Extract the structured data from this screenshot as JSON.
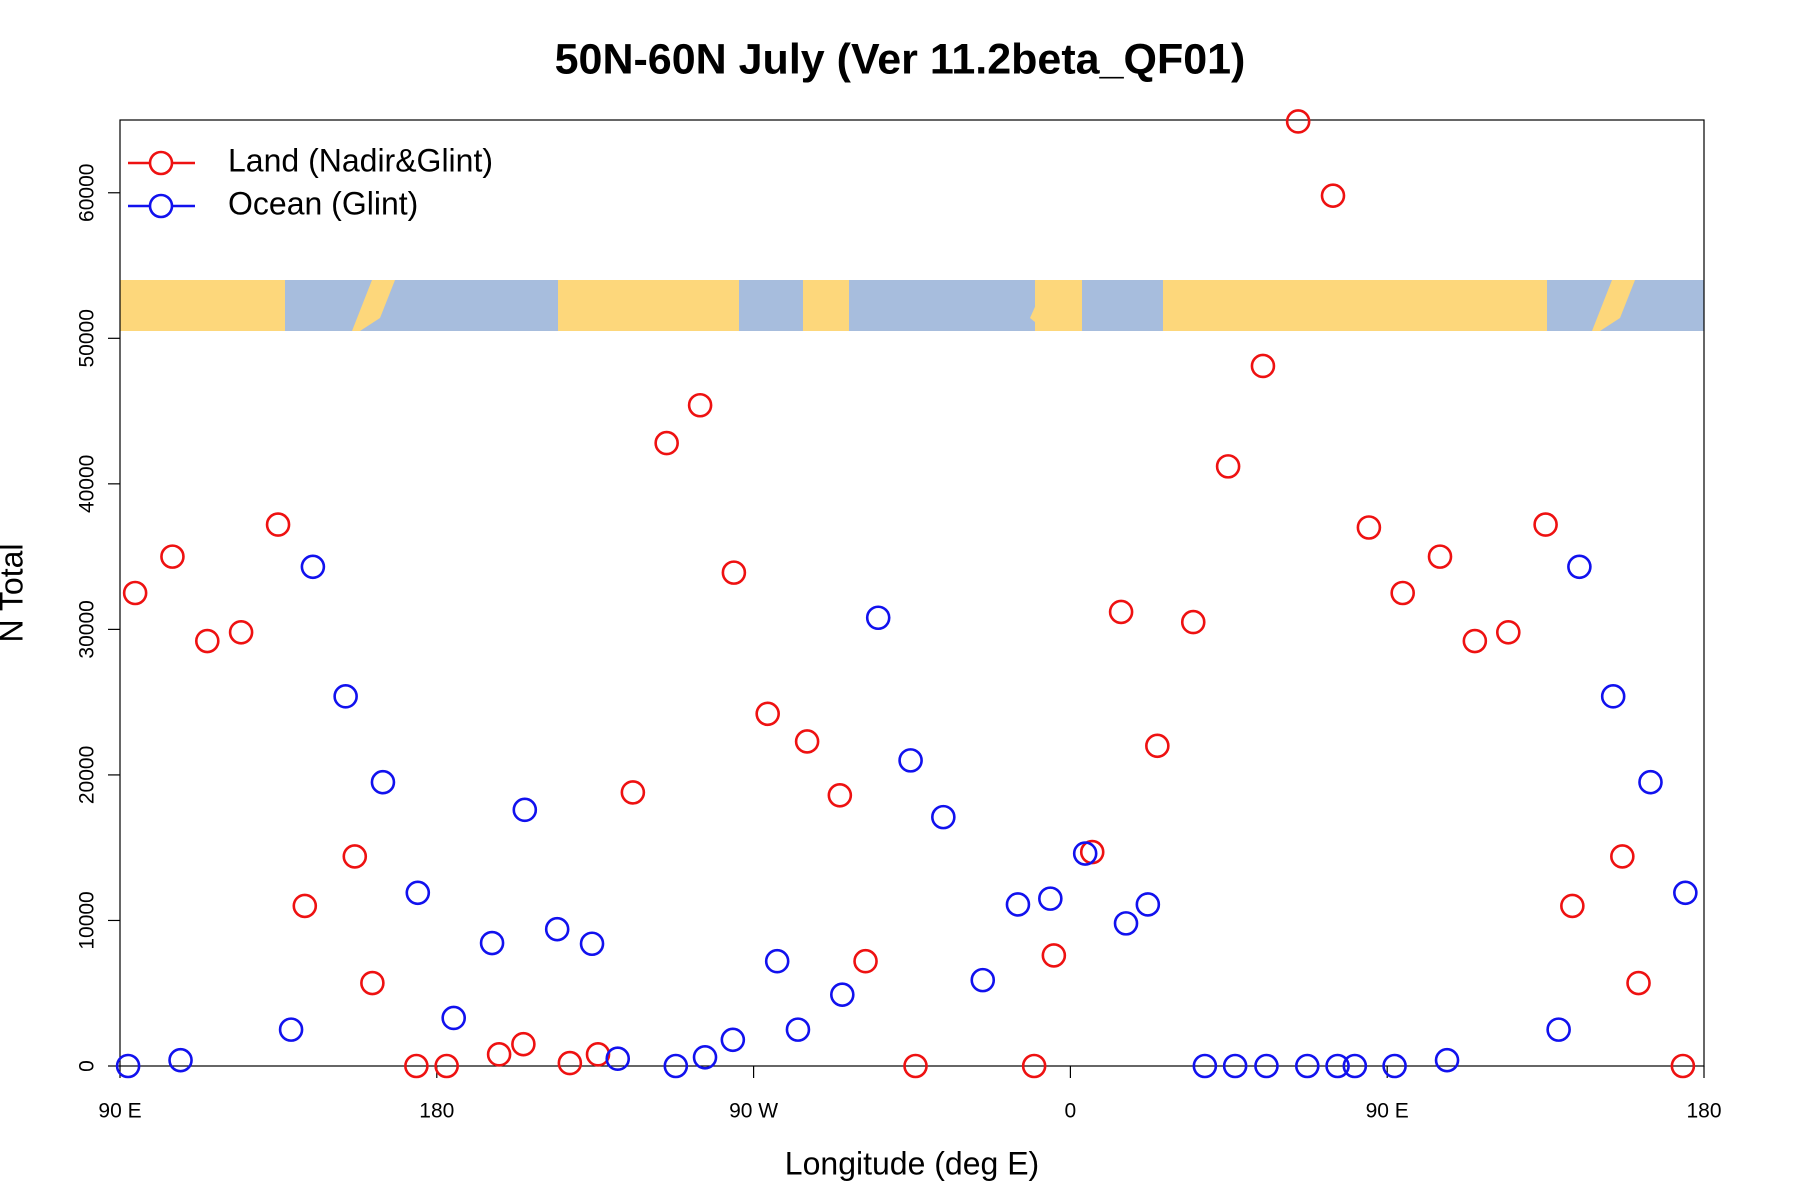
{
  "chart_data": {
    "type": "scatter",
    "title": "50N-60N July (Ver 11.2beta_QF01)",
    "x_label": "Longitude (deg E)",
    "y_label": "N Total",
    "xlim": [
      90,
      540
    ],
    "ylim": [
      0,
      65000
    ],
    "xticks": [
      {
        "value": 90,
        "label": "90 E"
      },
      {
        "value": 180,
        "label": "180"
      },
      {
        "value": 270,
        "label": "90 W"
      },
      {
        "value": 360,
        "label": "0"
      },
      {
        "value": 450,
        "label": "90 E"
      },
      {
        "value": 540,
        "label": "180"
      }
    ],
    "yticks": [
      0,
      10000,
      20000,
      30000,
      40000,
      50000,
      60000
    ],
    "legend": "top-left",
    "series": [
      {
        "name": "Land (Nadir&Glint)",
        "color": "#ee1111",
        "x": [
          94.3,
          104.9,
          114.8,
          124.4,
          134.9,
          142.5,
          156.7,
          161.7,
          174.2,
          182.8,
          197.7,
          204.6,
          217.8,
          225.8,
          235.7,
          245.3,
          254.8,
          264.4,
          274.0,
          285.2,
          294.5,
          301.8,
          316.0,
          349.7,
          355.3,
          366.2,
          374.4,
          384.7,
          394.9,
          404.8,
          414.7,
          424.7,
          434.6,
          444.8,
          454.4,
          465.0,
          474.9,
          484.4,
          495.0,
          502.6,
          516.8,
          521.4,
          534.0
        ],
        "values": [
          32500,
          35000,
          29200,
          29800,
          37200,
          11000,
          14400,
          5700,
          0,
          0,
          800,
          1500,
          200,
          800,
          18800,
          42800,
          45400,
          33900,
          24200,
          22300,
          18600,
          7200,
          0,
          0,
          7600,
          14700,
          31200,
          22000,
          30500,
          41200,
          48100,
          64900,
          59800,
          37000,
          32500,
          35000,
          29200,
          29800,
          37200,
          11000,
          14400,
          5700,
          0
        ]
      },
      {
        "name": "Ocean (Glint)",
        "color": "#1111ee",
        "x": [
          92.3,
          107.2,
          138.6,
          144.8,
          154.1,
          164.7,
          174.6,
          184.8,
          195.7,
          205.0,
          214.2,
          224.1,
          231.4,
          247.9,
          256.2,
          264.1,
          276.7,
          282.6,
          295.2,
          305.4,
          314.6,
          323.9,
          335.1,
          345.1,
          354.3,
          364.2,
          375.8,
          382.0,
          398.2,
          406.8,
          415.7,
          427.3,
          435.9,
          440.8,
          452.1,
          467.0,
          498.7,
          504.6,
          514.2,
          524.8,
          534.7
        ],
        "values": [
          0,
          400,
          2500,
          34300,
          25400,
          19500,
          11900,
          3300,
          8450,
          17600,
          9400,
          8400,
          500,
          0,
          600,
          1800,
          7200,
          2500,
          4900,
          30800,
          21000,
          17100,
          5900,
          11100,
          11500,
          14600,
          9800,
          11100,
          0,
          0,
          0,
          0,
          0,
          0,
          0,
          400,
          2500,
          34300,
          25400,
          19500,
          11900
        ]
      }
    ]
  }
}
